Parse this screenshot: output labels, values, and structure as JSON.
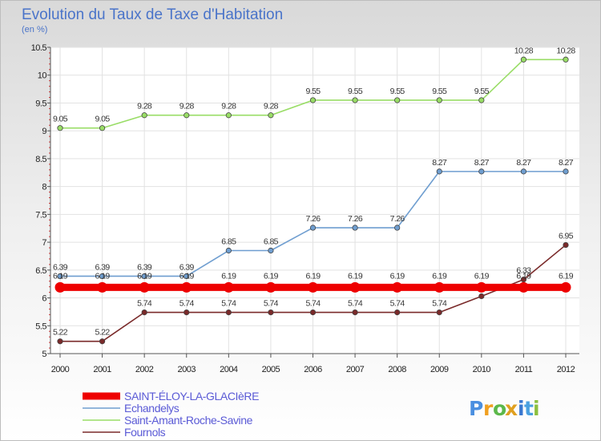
{
  "chart_data": {
    "type": "line",
    "title": "Evolution du Taux de Taxe d'Habitation",
    "subtitle": "(en %)",
    "xlabel": "",
    "ylabel": "",
    "x": [
      2000,
      2001,
      2002,
      2003,
      2004,
      2005,
      2006,
      2007,
      2008,
      2009,
      2010,
      2011,
      2012
    ],
    "x_tick_labels": [
      "2000",
      "2001",
      "2002",
      "2003",
      "2004",
      "2005",
      "2006",
      "2007",
      "2008",
      "2009",
      "2010",
      "2011",
      "2012"
    ],
    "ylim": [
      5,
      10.5
    ],
    "y_ticks": [
      5,
      5.5,
      6,
      6.5,
      7,
      7.5,
      8,
      8.5,
      9,
      9.5,
      10,
      10.5
    ],
    "y_tick_labels": [
      "5",
      "5.5",
      "6",
      "6.5",
      "7",
      "7.5",
      "8",
      "8.5",
      "9",
      "9.5",
      "10",
      "10.5"
    ],
    "grid": true,
    "legend_position": "bottom-left",
    "series": [
      {
        "name": "SAINT-ÉLOY-LA-GLACIèRE",
        "color": "#ee0000",
        "values": [
          6.19,
          6.19,
          6.19,
          6.19,
          6.19,
          6.19,
          6.19,
          6.19,
          6.19,
          6.19,
          6.19,
          6.19,
          6.19
        ],
        "labels": [
          "6.19",
          "6.19",
          "6.19",
          "6.19",
          "6.19",
          "6.19",
          "6.19",
          "6.19",
          "6.19",
          "6.19",
          "6.19",
          "6.19",
          "6.19"
        ]
      },
      {
        "name": "Echandelys",
        "color": "#6f9ed0",
        "values": [
          6.39,
          6.39,
          6.39,
          6.39,
          6.85,
          6.85,
          7.26,
          7.26,
          7.26,
          8.27,
          8.27,
          8.27,
          8.27
        ],
        "labels": [
          "6.39",
          "6.39",
          "6.39",
          "6.39",
          "6.85",
          "6.85",
          "7.26",
          "7.26",
          "7.26",
          "8.27",
          "8.27",
          "8.27",
          "8.27"
        ]
      },
      {
        "name": "Saint-Amant-Roche-Savine",
        "color": "#99dd66",
        "values": [
          9.05,
          9.05,
          9.28,
          9.28,
          9.28,
          9.28,
          9.55,
          9.55,
          9.55,
          9.55,
          9.55,
          10.28,
          10.28
        ],
        "labels": [
          "9.05",
          "9.05",
          "9.28",
          "9.28",
          "9.28",
          "9.28",
          "9.55",
          "9.55",
          "9.55",
          "9.55",
          "9.55",
          "10.28",
          "10.28"
        ]
      },
      {
        "name": "Fournols",
        "color": "#7a2a2a",
        "values": [
          5.22,
          5.22,
          5.74,
          5.74,
          5.74,
          5.74,
          5.74,
          5.74,
          5.74,
          5.74,
          6.03,
          6.33,
          6.95
        ],
        "labels": [
          "5.22",
          "5.22",
          "5.74",
          "5.74",
          "5.74",
          "5.74",
          "5.74",
          "5.74",
          "5.74",
          "5.74",
          "6.03",
          "6.33",
          "6.95"
        ]
      }
    ]
  },
  "logo": {
    "text": "Proxiti",
    "letters": [
      "P",
      "r",
      "o",
      "x",
      "i",
      "t",
      "i"
    ],
    "colors": [
      "#4a8fe0",
      "#f0a020",
      "#5cb84a",
      "#e0a020",
      "#3a78d0",
      "#4aa0e0",
      "#8cc040"
    ]
  }
}
